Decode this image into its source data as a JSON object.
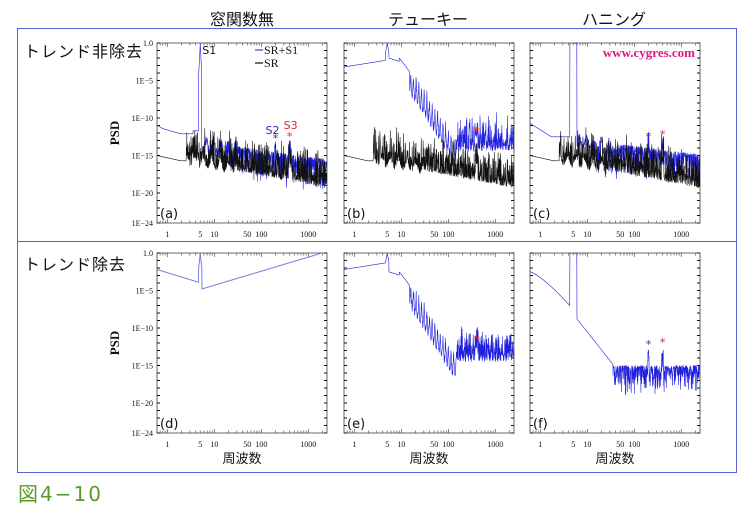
{
  "column_titles": [
    "窓関数無",
    "テューキー",
    "ハニング"
  ],
  "row_labels": [
    "トレンド非除去",
    "トレンド除去"
  ],
  "figure_label": "図4−10",
  "watermark": "www.cygres.com",
  "legend": [
    {
      "label": "SR+S1",
      "color": "#3a3acc"
    },
    {
      "label": "SR",
      "color": "#111111"
    }
  ],
  "colors": {
    "frame": "#5a5fd0",
    "sr_s1": "#2020dd",
    "sr_s1_light": "#7b7fd8",
    "sr": "#111111",
    "s2_marker": "#2a2ab8",
    "s3_marker": "#e0202a",
    "figure_label": "#5a9a2a",
    "watermark": "#e0157f"
  },
  "chart_data": {
    "type": "line",
    "layout": "2x3 grid of log-log power spectral density plots",
    "xlabel": "周波数",
    "ylabel": "PSD",
    "xscale": "log",
    "yscale": "log",
    "xlim": [
      0.6,
      2500
    ],
    "ylim": [
      1e-24,
      1.0
    ],
    "x_ticks": [
      "1",
      "5",
      "10",
      "50",
      "100",
      "1000"
    ],
    "x_tick_values": [
      1,
      5,
      10,
      50,
      100,
      1000
    ],
    "y_ticks": [
      "1.0",
      "1E−5",
      "1E−10",
      "1E−15",
      "1E−20",
      "1E−24"
    ],
    "y_tick_values": [
      1.0,
      1e-05,
      1e-10,
      1e-15,
      1e-20,
      1e-24
    ],
    "annotations": {
      "S1": {
        "label": "S1",
        "frequency": 5
      },
      "S2": {
        "label": "S2",
        "frequency": 200
      },
      "S3": {
        "label": "S3",
        "frequency": 400
      }
    },
    "panels": [
      {
        "id": "a",
        "tag": "(a)",
        "row": 0,
        "col": 0,
        "window": "窓関数無",
        "trend": "トレンド非除去",
        "show_legend": true,
        "show_s_labels": true,
        "markers": [
          "S2",
          "S3"
        ],
        "series": [
          {
            "name": "SR+S1",
            "kind": "none",
            "start_log": -11.2,
            "peak_log": 0,
            "floor_log": -13.2,
            "slope": -2.6,
            "noise": 2.2
          },
          {
            "name": "SR",
            "kind": "none_sr",
            "start_log": -15,
            "floor_log": -15.5,
            "slope": -3.2,
            "noise": 2.4
          }
        ]
      },
      {
        "id": "b",
        "tag": "(b)",
        "row": 0,
        "col": 1,
        "window": "テューキー",
        "trend": "トレンド非除去",
        "markers": [
          "S3"
        ],
        "series": [
          {
            "name": "SR+S1",
            "kind": "tukey",
            "start_log": -3.2,
            "peak_log": 0,
            "plateau_log": -2,
            "floor_log": -15.5,
            "noise": 2.2
          },
          {
            "name": "SR",
            "kind": "none_sr",
            "start_log": -15,
            "floor_log": -15.5,
            "slope": -3.2,
            "noise": 2.4
          }
        ]
      },
      {
        "id": "c",
        "tag": "(c)",
        "row": 0,
        "col": 2,
        "window": "ハニング",
        "trend": "トレンド非除去",
        "show_watermark": true,
        "markers": [
          "S2",
          "S3"
        ],
        "series": [
          {
            "name": "SR+S1",
            "kind": "hann",
            "start_log": -10.7,
            "peak_log": 0,
            "floor_log": -12.8,
            "slope": -2.6,
            "noise": 2.2
          },
          {
            "name": "SR",
            "kind": "none_sr",
            "start_log": -15,
            "floor_log": -15.5,
            "slope": -3.2,
            "noise": 2.4
          }
        ]
      },
      {
        "id": "d",
        "tag": "(d)",
        "row": 1,
        "col": 0,
        "window": "窓関数無",
        "trend": "トレンド除去",
        "markers": [],
        "series": [
          {
            "name": "SR+S1",
            "kind": "smooth_none",
            "start_log": -2.2,
            "peak_log": 0,
            "end_log": -9.8
          }
        ]
      },
      {
        "id": "e",
        "tag": "(e)",
        "row": 1,
        "col": 1,
        "window": "テューキー",
        "trend": "トレンド除去",
        "markers": [
          "S3"
        ],
        "series": [
          {
            "name": "SR+S1",
            "kind": "tukey",
            "start_log": -2.2,
            "peak_log": 0,
            "plateau_log": -2.5,
            "floor_log": -15.5,
            "noise": 2.0
          }
        ]
      },
      {
        "id": "f",
        "tag": "(f)",
        "row": 1,
        "col": 2,
        "window": "ハニング",
        "trend": "トレンド除去",
        "markers": [
          "S2",
          "S3"
        ],
        "series": [
          {
            "name": "SR+S1",
            "kind": "hann_detrend",
            "start_log": -2.5,
            "peak_log": 0,
            "floor_log": -15.3,
            "noise": 2.0
          }
        ]
      }
    ]
  }
}
